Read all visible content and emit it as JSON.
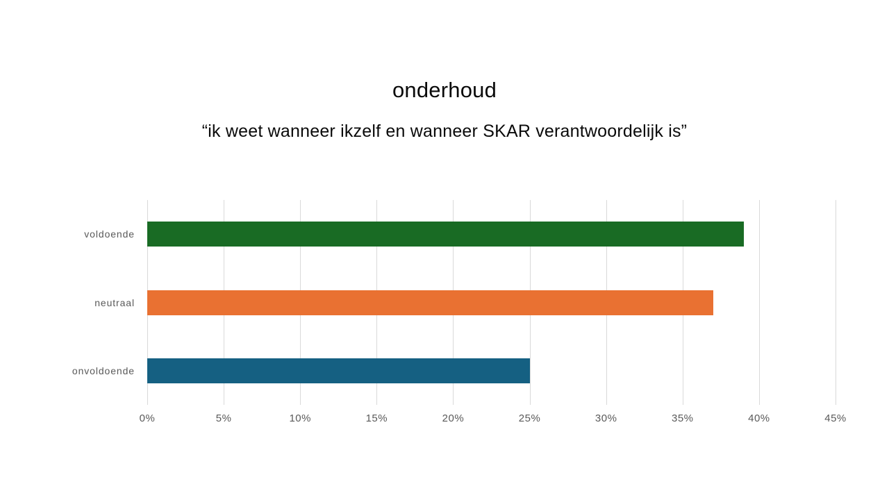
{
  "chart": {
    "title": "onderhoud",
    "subtitle": "“ik weet wanneer ikzelf en wanneer SKAR verantwoordelijk is”"
  },
  "chart_data": {
    "type": "bar",
    "orientation": "horizontal",
    "title": "onderhoud",
    "subtitle": "“ik weet wanneer ikzelf en wanneer SKAR verantwoordelijk is”",
    "categories": [
      "voldoende",
      "neutraal",
      "onvoldoende"
    ],
    "values": [
      39,
      37,
      25
    ],
    "unit": "%",
    "colors": [
      "#196B24",
      "#E97132",
      "#156082"
    ],
    "xlabel": "",
    "ylabel": "",
    "xlim": [
      0,
      45
    ],
    "tick_step": 5,
    "tick_labels": [
      "0%",
      "5%",
      "10%",
      "15%",
      "20%",
      "25%",
      "30%",
      "35%",
      "40%",
      "45%"
    ],
    "grid": "vertical",
    "gridline_color": "#D9D9D9",
    "axis_label_color": "#595959",
    "legend_position": "none",
    "background": "#FFFFFF"
  }
}
